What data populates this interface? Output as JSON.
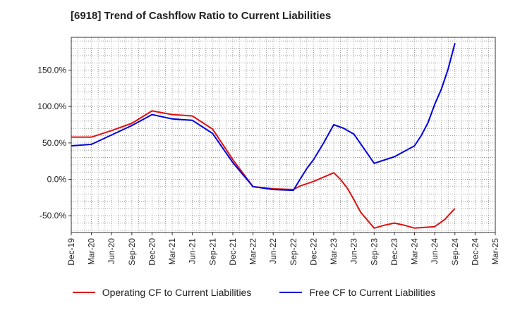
{
  "title": "[6918]  Trend of Cashflow Ratio to Current Liabilities",
  "colors": {
    "operating": "#e01010",
    "free": "#0000e0"
  },
  "chart_data": {
    "type": "line",
    "title": "[6918]  Trend of Cashflow Ratio to Current Liabilities",
    "xlabel": "",
    "ylabel": "",
    "x_ticks": [
      "Dec-19",
      "Mar-20",
      "Jun-20",
      "Sep-20",
      "Dec-20",
      "Mar-21",
      "Jun-21",
      "Sep-21",
      "Dec-21",
      "Mar-22",
      "Jun-22",
      "Sep-22",
      "Dec-22",
      "Mar-23",
      "Jun-23",
      "Sep-23",
      "Dec-23",
      "Mar-24",
      "Jun-24",
      "Sep-24",
      "Dec-24",
      "Mar-25"
    ],
    "y_ticks": [
      -50,
      0,
      50,
      100,
      150
    ],
    "y_tick_labels": [
      "-50.0%",
      "0.0%",
      "50.0%",
      "100.0%",
      "150.0%"
    ],
    "ylim": [
      -73,
      195
    ],
    "grid": true,
    "legend_position": "bottom",
    "series": [
      {
        "name": "Operating CF to Current Liabilities",
        "color": "#e01010",
        "points": [
          [
            0,
            58
          ],
          [
            1,
            58
          ],
          [
            2,
            67
          ],
          [
            3,
            77
          ],
          [
            4,
            94
          ],
          [
            5,
            89
          ],
          [
            6,
            87
          ],
          [
            7,
            69
          ],
          [
            8,
            27
          ],
          [
            9,
            -10
          ],
          [
            10,
            -13
          ],
          [
            11,
            -14
          ],
          [
            11.33,
            -9
          ],
          [
            12,
            -3
          ],
          [
            13,
            9
          ],
          [
            13.33,
            0
          ],
          [
            13.67,
            -12
          ],
          [
            14,
            -28
          ],
          [
            14.33,
            -45
          ],
          [
            15,
            -67
          ],
          [
            15.5,
            -63
          ],
          [
            16,
            -60
          ],
          [
            16.5,
            -63
          ],
          [
            17,
            -67
          ],
          [
            18,
            -65
          ],
          [
            18.5,
            -55
          ],
          [
            19,
            -40
          ]
        ]
      },
      {
        "name": "Free CF to Current Liabilities",
        "color": "#0000e0",
        "points": [
          [
            0,
            46
          ],
          [
            1,
            48
          ],
          [
            2,
            61
          ],
          [
            3,
            74
          ],
          [
            4,
            89
          ],
          [
            5,
            83
          ],
          [
            6,
            81
          ],
          [
            7,
            63
          ],
          [
            8,
            23
          ],
          [
            9,
            -10
          ],
          [
            10,
            -14
          ],
          [
            11,
            -15
          ],
          [
            11.33,
            0
          ],
          [
            11.67,
            15
          ],
          [
            12,
            27
          ],
          [
            12.5,
            50
          ],
          [
            13,
            75
          ],
          [
            13.5,
            70
          ],
          [
            14,
            62
          ],
          [
            14.5,
            42
          ],
          [
            15,
            22
          ],
          [
            16,
            31
          ],
          [
            17,
            46
          ],
          [
            17.33,
            60
          ],
          [
            17.67,
            78
          ],
          [
            18,
            103
          ],
          [
            18.33,
            124
          ],
          [
            18.67,
            152
          ],
          [
            19,
            187
          ]
        ]
      }
    ]
  }
}
